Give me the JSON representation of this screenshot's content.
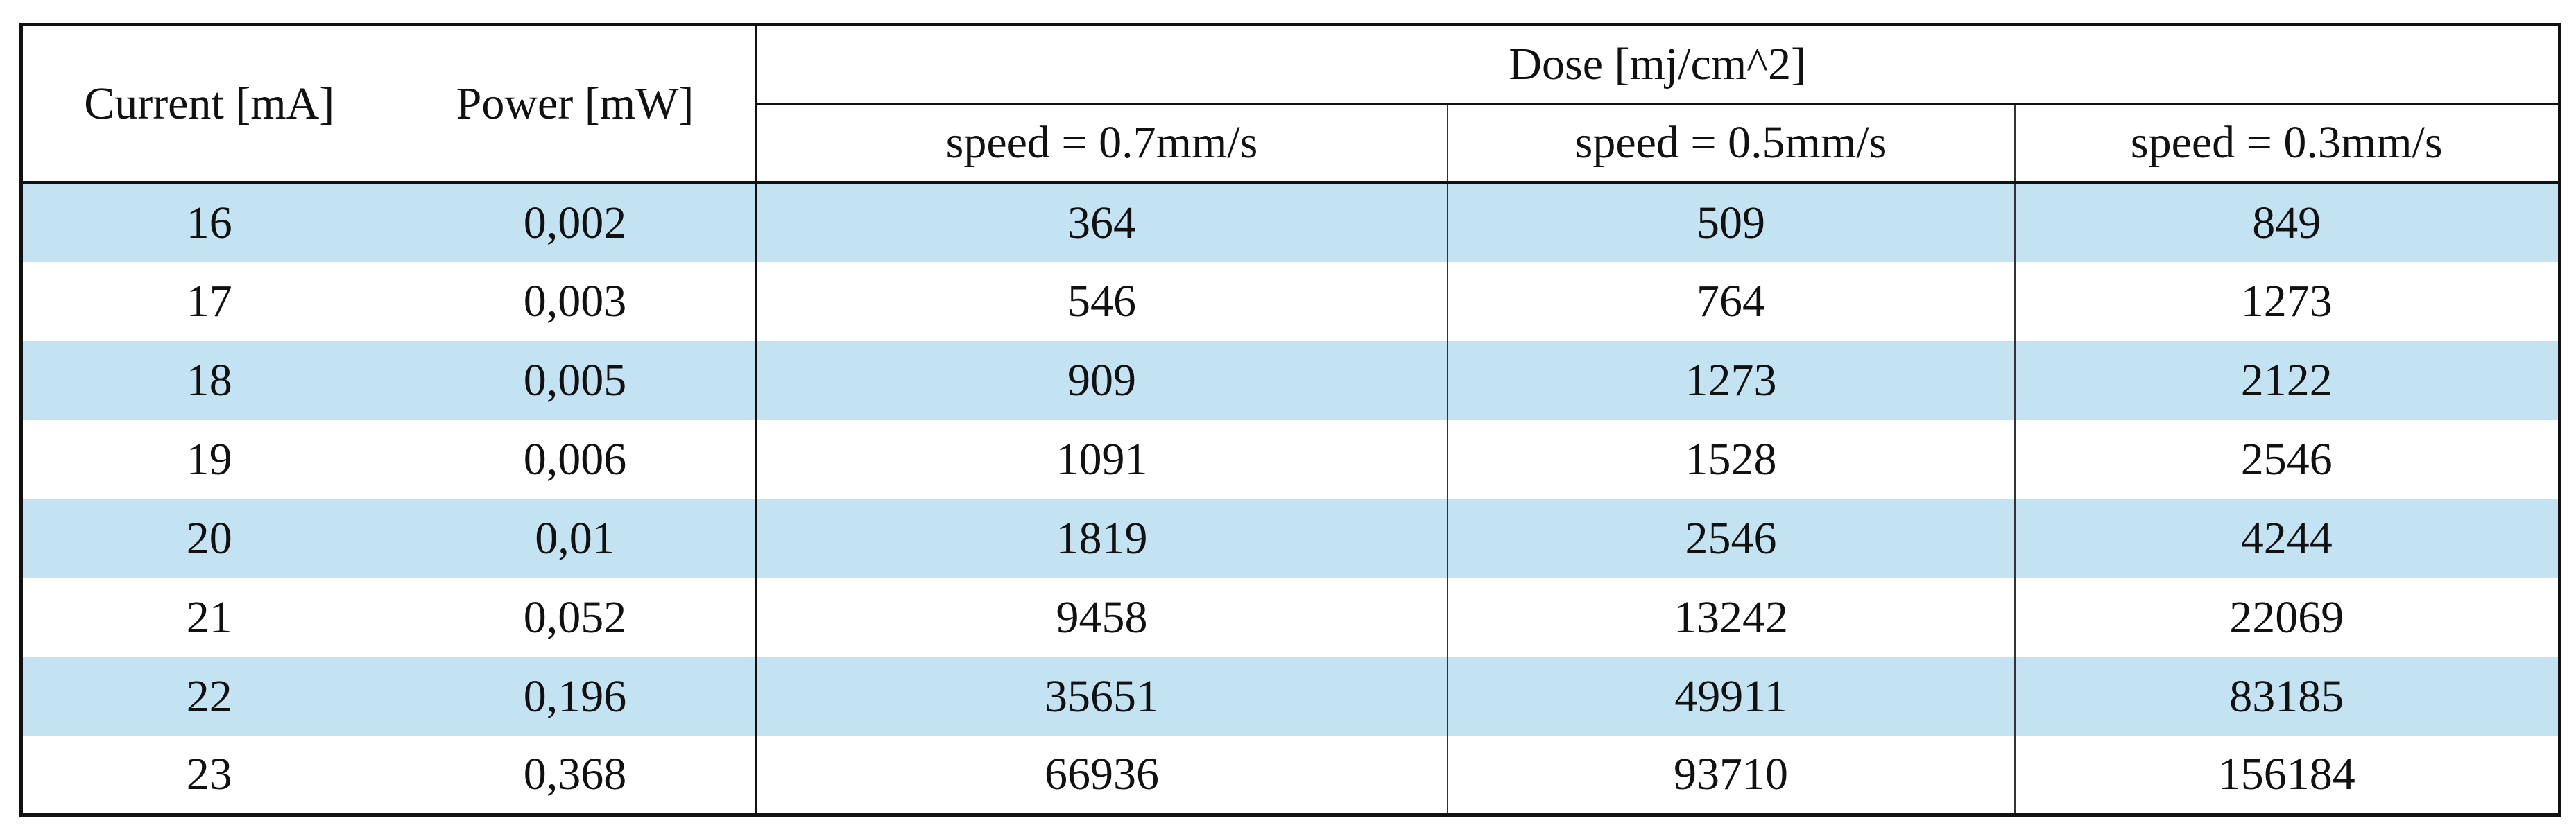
{
  "table": {
    "header": {
      "group_label": "Dose [mj/cm^2]",
      "columns": [
        "Current [mA]",
        "Power [mW]",
        "speed = 0.7mm/s",
        "speed = 0.5mm/s",
        "speed = 0.3mm/s"
      ]
    },
    "rows": [
      [
        16,
        "0,002",
        364,
        509,
        849
      ],
      [
        17,
        "0,003",
        546,
        764,
        1273
      ],
      [
        18,
        "0,005",
        909,
        1273,
        2122
      ],
      [
        19,
        "0,006",
        1091,
        1528,
        2546
      ],
      [
        20,
        "0,01",
        1819,
        2546,
        4244
      ],
      [
        21,
        "0,052",
        9458,
        13242,
        22069
      ],
      [
        22,
        "0,196",
        35651,
        49911,
        83185
      ],
      [
        23,
        "0,368",
        66936,
        93710,
        156184
      ]
    ]
  }
}
